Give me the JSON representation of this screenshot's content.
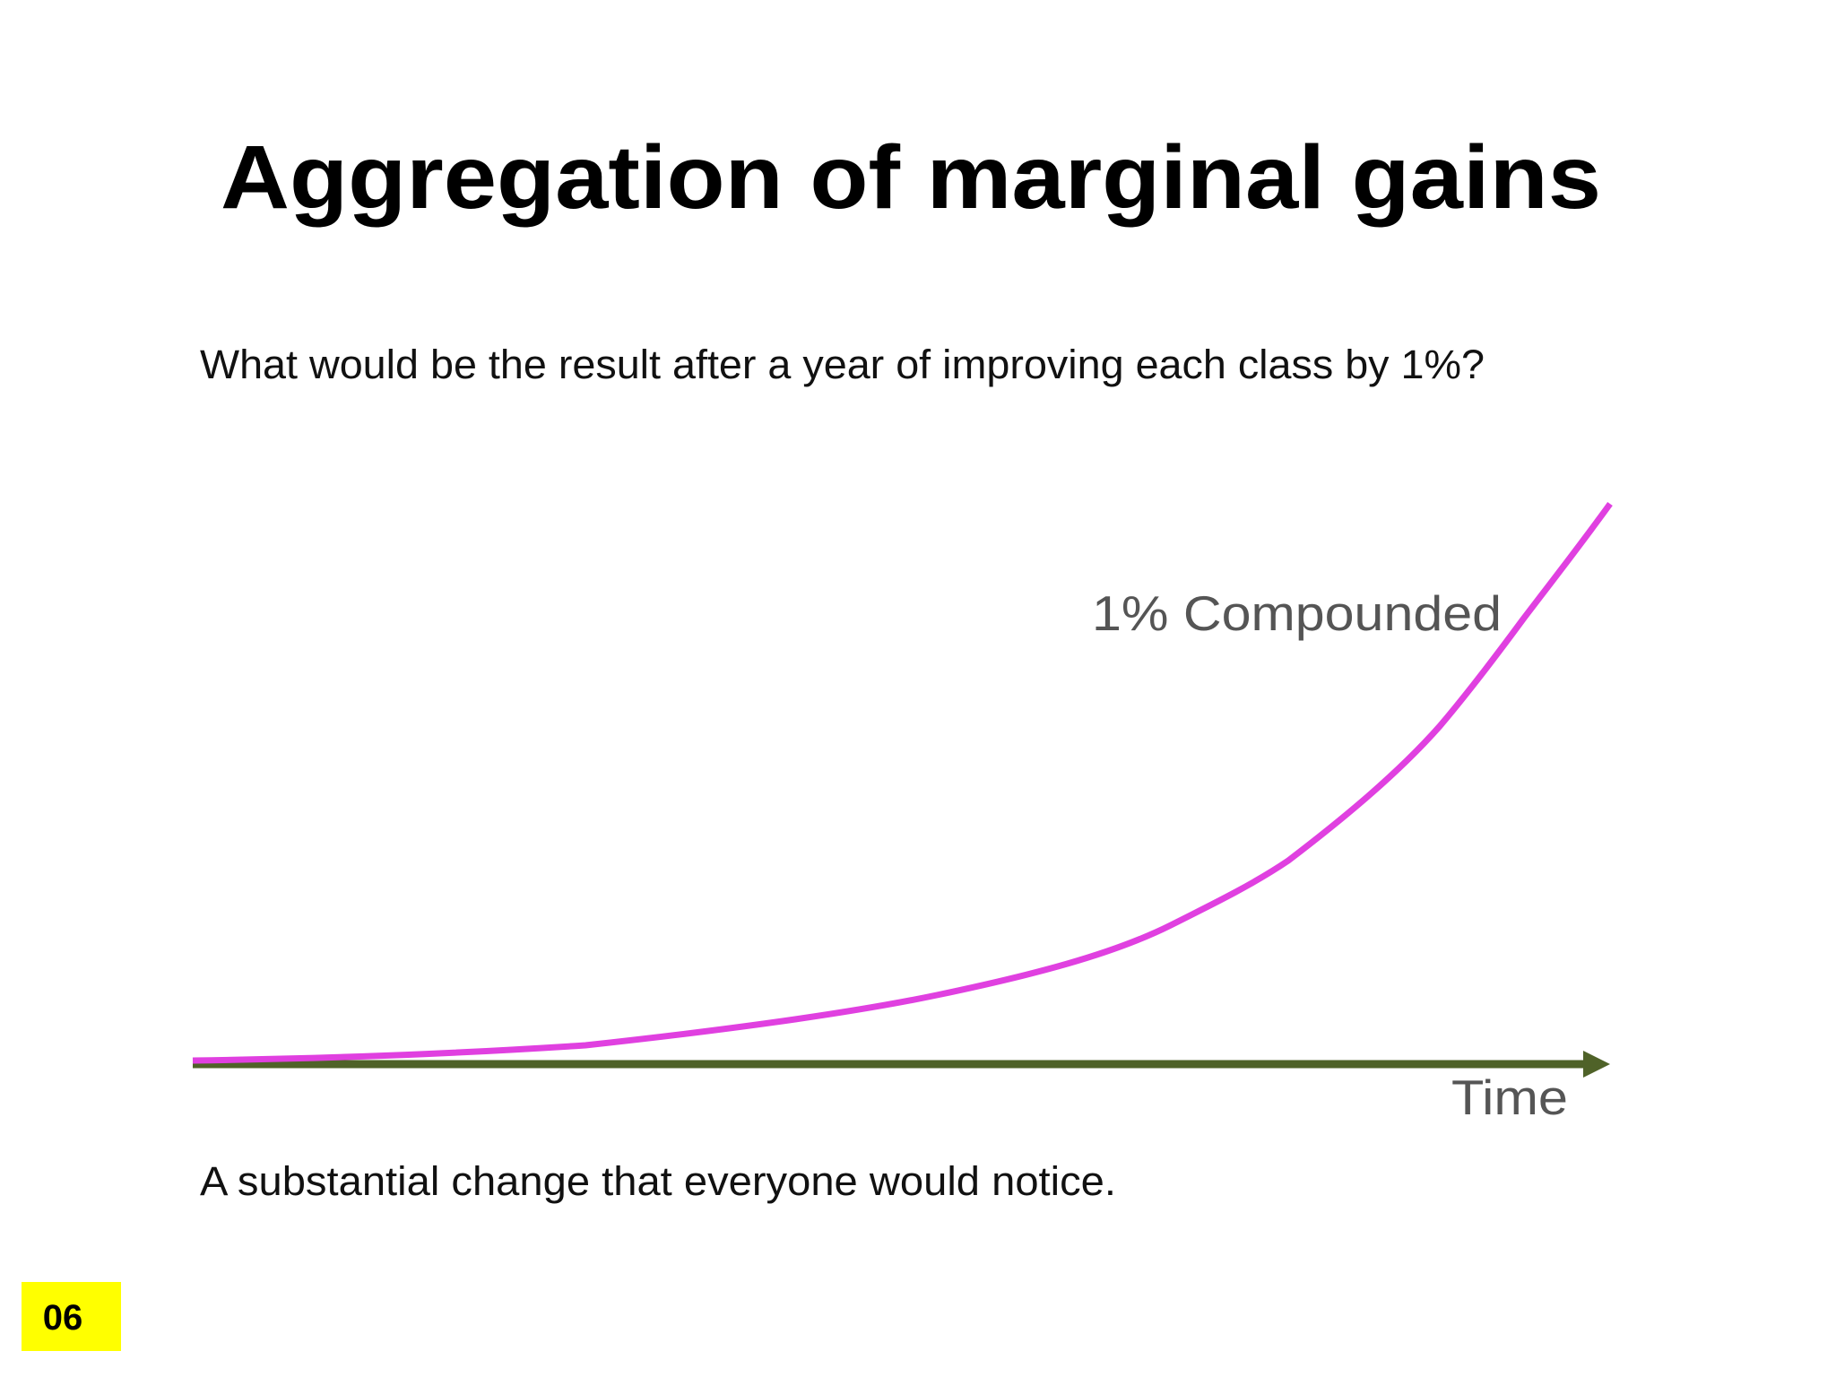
{
  "header": {
    "title": "Aggregation of marginal gains"
  },
  "body": {
    "question": "What would be the result after a year of improving each class by 1%?",
    "conclusion": "A substantial change that everyone would notice."
  },
  "figure": {
    "curve_label": "1% Compounded",
    "axis_label": "Time"
  },
  "footer": {
    "slide_number": "06"
  }
}
